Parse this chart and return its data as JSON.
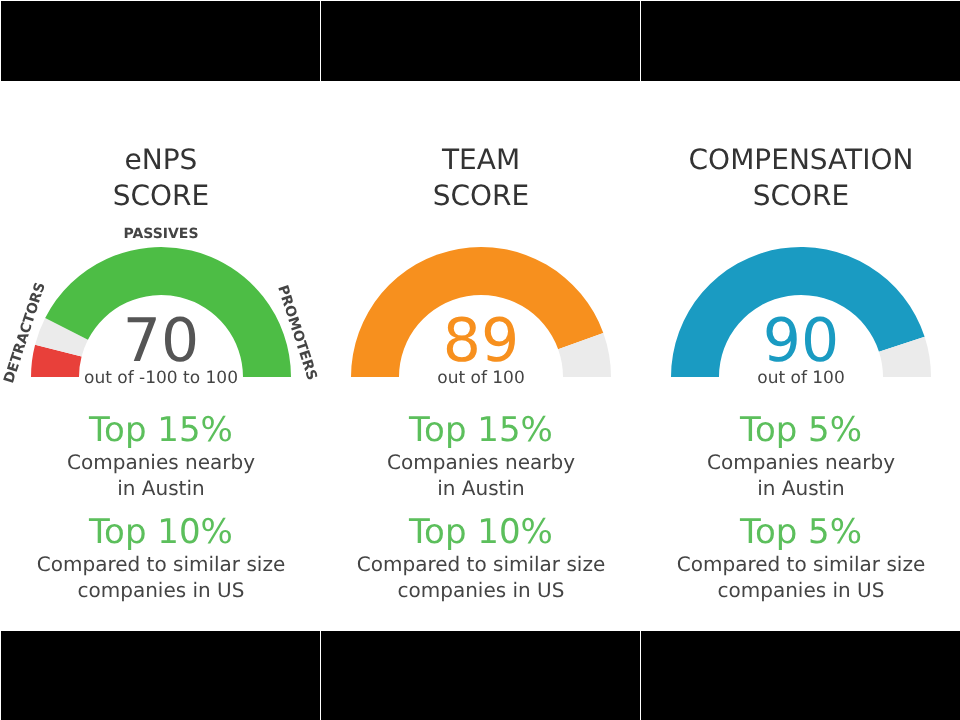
{
  "chart_data": [
    {
      "type": "donut",
      "title": "eNPS\nSCORE",
      "categories": [
        null,
        null,
        null
      ],
      "values": [
        8,
        7,
        85
      ],
      "colors": [
        "#e8403a",
        "#ebebeb",
        "#4dbd45"
      ],
      "annotations": [
        "70",
        "out of -100 to 100",
        "Top 15%",
        "Companies nearby\nin Austin",
        "Top 10%",
        "Compared to similar size\ncompanies in US",
        "DETRACTORS",
        "PASSIVES",
        "PROMOTERS"
      ]
    },
    {
      "type": "donut",
      "title": "TEAM\nSCORE",
      "categories": [
        null,
        null
      ],
      "values": [
        89,
        11
      ],
      "colors": [
        "#f7901e",
        "#ebebeb"
      ],
      "annotations": [
        "89",
        "out of 100",
        "Top 15%",
        "Companies nearby\nin Austin",
        "Top 10%",
        "Compared to similar size\ncompanies in US"
      ]
    },
    {
      "type": "donut",
      "title": "COMPENSATION\nSCORE",
      "categories": [
        null,
        null
      ],
      "values": [
        90,
        10
      ],
      "colors": [
        "#1a9bc2",
        "#ebebeb"
      ],
      "annotations": [
        "90",
        "out of 100",
        "Top 5%",
        "Companies nearby\nin Austin",
        "Top 5%",
        "Compared to similar size\ncompanies in US"
      ]
    }
  ]
}
